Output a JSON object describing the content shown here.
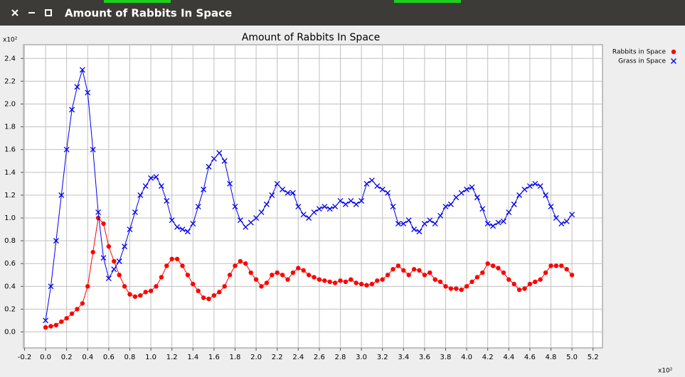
{
  "window_title": "Amount of Rabbits In Space",
  "chart_data": {
    "type": "line",
    "title": "Amount of Rabbits In Space",
    "x_scale_label": "x10²",
    "y_scale_label": "x10²",
    "x": [
      0,
      0.05,
      0.1,
      0.15,
      0.2,
      0.25,
      0.3,
      0.35,
      0.4,
      0.45,
      0.5,
      0.55,
      0.6,
      0.65,
      0.7,
      0.75,
      0.8,
      0.85,
      0.9,
      0.95,
      1.0,
      1.05,
      1.1,
      1.15,
      1.2,
      1.25,
      1.3,
      1.35,
      1.4,
      1.45,
      1.5,
      1.55,
      1.6,
      1.65,
      1.7,
      1.75,
      1.8,
      1.85,
      1.9,
      1.95,
      2.0,
      2.05,
      2.1,
      2.15,
      2.2,
      2.25,
      2.3,
      2.35,
      2.4,
      2.45,
      2.5,
      2.55,
      2.6,
      2.65,
      2.7,
      2.75,
      2.8,
      2.85,
      2.9,
      2.95,
      3.0,
      3.05,
      3.1,
      3.15,
      3.2,
      3.25,
      3.3,
      3.35,
      3.4,
      3.45,
      3.5,
      3.55,
      3.6,
      3.65,
      3.7,
      3.75,
      3.8,
      3.85,
      3.9,
      3.95,
      4.0,
      4.05,
      4.1,
      4.15,
      4.2,
      4.25,
      4.3,
      4.35,
      4.4,
      4.45,
      4.5,
      4.55,
      4.6,
      4.65,
      4.7,
      4.75,
      4.8,
      4.85,
      4.9,
      4.95,
      5.0
    ],
    "series": [
      {
        "name": "Rabbits in Space",
        "color": "#ff0000",
        "marker": "circle",
        "values": [
          0.04,
          0.05,
          0.06,
          0.09,
          0.12,
          0.16,
          0.2,
          0.25,
          0.4,
          0.7,
          1.0,
          0.95,
          0.75,
          0.62,
          0.5,
          0.4,
          0.33,
          0.31,
          0.32,
          0.35,
          0.36,
          0.4,
          0.48,
          0.58,
          0.64,
          0.64,
          0.58,
          0.5,
          0.42,
          0.36,
          0.3,
          0.29,
          0.32,
          0.35,
          0.4,
          0.5,
          0.58,
          0.62,
          0.6,
          0.52,
          0.46,
          0.4,
          0.43,
          0.5,
          0.52,
          0.5,
          0.46,
          0.52,
          0.56,
          0.54,
          0.5,
          0.48,
          0.46,
          0.45,
          0.44,
          0.43,
          0.45,
          0.44,
          0.46,
          0.43,
          0.42,
          0.41,
          0.42,
          0.45,
          0.46,
          0.5,
          0.55,
          0.58,
          0.54,
          0.5,
          0.55,
          0.54,
          0.5,
          0.52,
          0.46,
          0.44,
          0.4,
          0.38,
          0.38,
          0.37,
          0.4,
          0.44,
          0.48,
          0.52,
          0.6,
          0.58,
          0.56,
          0.52,
          0.46,
          0.42,
          0.37,
          0.38,
          0.42,
          0.44,
          0.46,
          0.52,
          0.58,
          0.58,
          0.58,
          0.55,
          0.5
        ]
      },
      {
        "name": "Grass in Space",
        "color": "#0000ee",
        "marker": "x",
        "values": [
          0.1,
          0.4,
          0.8,
          1.2,
          1.6,
          1.95,
          2.15,
          2.3,
          2.1,
          1.6,
          1.05,
          0.65,
          0.47,
          0.55,
          0.62,
          0.75,
          0.9,
          1.05,
          1.2,
          1.28,
          1.35,
          1.36,
          1.28,
          1.15,
          0.98,
          0.92,
          0.9,
          0.88,
          0.95,
          1.1,
          1.25,
          1.45,
          1.52,
          1.57,
          1.5,
          1.3,
          1.1,
          0.98,
          0.92,
          0.96,
          1.0,
          1.05,
          1.12,
          1.2,
          1.3,
          1.25,
          1.22,
          1.22,
          1.1,
          1.03,
          1.0,
          1.05,
          1.08,
          1.1,
          1.08,
          1.1,
          1.15,
          1.12,
          1.15,
          1.12,
          1.15,
          1.3,
          1.33,
          1.28,
          1.25,
          1.22,
          1.1,
          0.95,
          0.95,
          0.98,
          0.9,
          0.88,
          0.95,
          0.98,
          0.95,
          1.02,
          1.1,
          1.12,
          1.18,
          1.22,
          1.25,
          1.27,
          1.18,
          1.08,
          0.95,
          0.93,
          0.96,
          0.97,
          1.05,
          1.12,
          1.2,
          1.25,
          1.28,
          1.3,
          1.28,
          1.2,
          1.1,
          1.0,
          0.95,
          0.97,
          1.03
        ]
      }
    ],
    "xlim": [
      -0.21,
      5.29
    ],
    "ylim": [
      -0.14,
      2.52
    ],
    "xticks": [
      -0.2,
      {
        "value": 0,
        "label": "0.0"
      },
      0.2,
      0.4,
      0.6,
      0.8,
      {
        "value": 1,
        "label": "1.0"
      },
      1.2,
      1.4,
      1.6,
      1.8,
      {
        "value": 2,
        "label": "2.0"
      },
      2.2,
      2.4,
      2.6,
      2.8,
      {
        "value": 3,
        "label": "3.0"
      },
      3.2,
      3.4,
      3.6,
      3.8,
      {
        "value": 4,
        "label": "4.0"
      },
      4.2,
      4.4,
      4.6,
      4.8,
      {
        "value": 5,
        "label": "5.0"
      },
      5.2
    ],
    "yticks": [
      {
        "value": 0,
        "label": "0.0"
      },
      0.2,
      0.4,
      0.6,
      0.8,
      {
        "value": 1,
        "label": "1.0"
      },
      1.2,
      1.4,
      1.6,
      1.8,
      {
        "value": 2,
        "label": "2.0"
      },
      2.2,
      2.4
    ],
    "grid": true,
    "legend": "right"
  }
}
